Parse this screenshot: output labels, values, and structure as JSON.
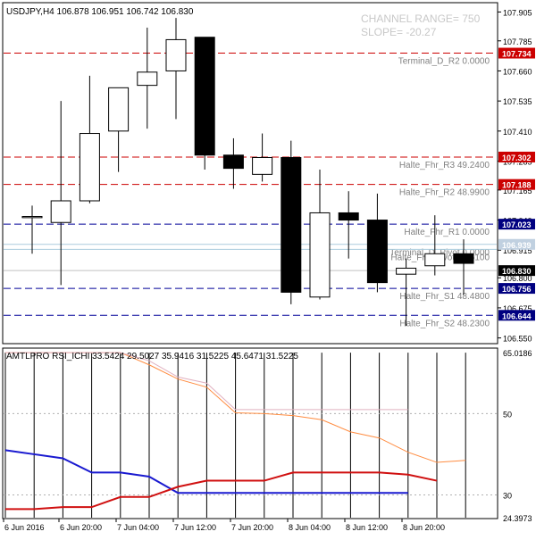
{
  "symbol_header": "USDJPY,H4  106.878 106.951 106.742 106.830",
  "overlay": {
    "channel_range": "CHANNEL RANGE= 750",
    "slope": "SLOPE= -20.27"
  },
  "indicator_header": "AMTLPRO RSI_ICHI 33.5424 29.5027 35.9416 31.5225 45.6471 31.5225",
  "colors": {
    "background": "#ffffff",
    "grid_border": "#000000",
    "red_dash": "#cc0000",
    "blue_dash": "#000099",
    "pivot_line": "#aaccdd",
    "current_price_line": "#c0c0c0",
    "label_gray": "#808080",
    "tag_red_bg": "#cc0000",
    "tag_blue_bg": "#000080",
    "tag_light_bg": "#c0d0e0",
    "tag_black_bg": "#000000",
    "rsi_orange": "#ff8c40",
    "rsi_pink": "#e0b0c0",
    "rsi_blue": "#1a1ad0",
    "rsi_red": "#d01010",
    "rsi_dots": "#b0b0b0"
  },
  "chart_data": {
    "type": "candlestick",
    "price_axis_ticks": [
      "107.905",
      "107.785",
      "107.660",
      "107.535",
      "107.410",
      "107.285",
      "107.165",
      "107.040",
      "106.915",
      "106.800",
      "106.675",
      "106.550"
    ],
    "price_ylim": [
      106.53,
      107.94
    ],
    "time_labels": [
      "6 Jun 2016",
      "6 Jun 20:00",
      "7 Jun 04:00",
      "7 Jun 12:00",
      "7 Jun 20:00",
      "8 Jun 04:00",
      "8 Jun 12:00",
      "8 Jun 20:00"
    ],
    "candles": [
      {
        "o": 107.05,
        "h": 107.1,
        "l": 106.9,
        "c": 107.055
      },
      {
        "o": 107.03,
        "h": 107.535,
        "l": 106.77,
        "c": 107.12
      },
      {
        "o": 107.12,
        "h": 107.64,
        "l": 107.11,
        "c": 107.4
      },
      {
        "o": 107.41,
        "h": 107.58,
        "l": 107.24,
        "c": 107.59
      },
      {
        "o": 107.6,
        "h": 107.84,
        "l": 107.42,
        "c": 107.655
      },
      {
        "o": 107.66,
        "h": 107.88,
        "l": 107.46,
        "c": 107.79
      },
      {
        "o": 107.8,
        "h": 107.8,
        "l": 107.25,
        "c": 107.31
      },
      {
        "o": 107.31,
        "h": 107.38,
        "l": 107.17,
        "c": 107.255
      },
      {
        "o": 107.23,
        "h": 107.4,
        "l": 107.2,
        "c": 107.3
      },
      {
        "o": 107.3,
        "h": 107.37,
        "l": 106.69,
        "c": 106.74
      },
      {
        "o": 106.72,
        "h": 107.25,
        "l": 106.71,
        "c": 107.07
      },
      {
        "o": 107.07,
        "h": 107.16,
        "l": 106.88,
        "c": 107.04
      },
      {
        "o": 107.04,
        "h": 107.15,
        "l": 106.74,
        "c": 106.78
      },
      {
        "o": 106.815,
        "h": 106.88,
        "l": 106.6,
        "c": 106.84
      },
      {
        "o": 106.85,
        "h": 107.06,
        "l": 106.81,
        "c": 106.9
      },
      {
        "o": 106.9,
        "h": 106.96,
        "l": 106.73,
        "c": 106.86
      }
    ],
    "levels": [
      {
        "price": 107.734,
        "tag": "107.734",
        "label": "Terminal_D_R2 0.0000",
        "color": "red",
        "label_color": "gray",
        "tag_style": "red"
      },
      {
        "price": 107.302,
        "tag": "107.302",
        "label": "Halte_Fhr_R3 49.2400",
        "color": "red",
        "label_color": "gray",
        "tag_style": "red"
      },
      {
        "price": 107.188,
        "tag": "107.188",
        "label": "Halte_Fhr_R2 48.9900",
        "color": "red",
        "label_color": "gray",
        "tag_style": "red"
      },
      {
        "price": 107.023,
        "tag": "107.023",
        "label": "Halte_Fhr_R1 0.0000",
        "color": "blue",
        "label_color": "gray",
        "tag_style": "blue"
      },
      {
        "price": 106.939,
        "tag": "106.939",
        "label": "Terminal_D_Pivot 0.0000",
        "color": "light",
        "label_color": "gray",
        "tag_style": "light"
      },
      {
        "price": 106.918,
        "tag": "",
        "label": "Halte_Fhr_Pivot 48.6100",
        "color": "light",
        "label_color": "gray",
        "tag_style": "none"
      },
      {
        "price": 106.83,
        "tag": "106.830",
        "label": "",
        "color": "current",
        "label_color": "gray",
        "tag_style": "black"
      },
      {
        "price": 106.756,
        "tag": "106.756",
        "label": "Halte_Fhr_S1 48.4800",
        "color": "blue",
        "label_color": "gray",
        "tag_style": "blue"
      },
      {
        "price": 106.644,
        "tag": "106.644",
        "label": "Halte_Fhr_S2 48.2300",
        "color": "blue",
        "label_color": "gray",
        "tag_style": "blue"
      }
    ],
    "rsi_axis_ticks": [
      "65.0186",
      "50",
      "30",
      "24.3973"
    ],
    "rsi_ylim": [
      24.3973,
      65.0186
    ],
    "rsi_levels": [
      50,
      30
    ],
    "rsi_series": [
      {
        "color": "orange",
        "values": [
          65.0,
          65.0,
          65.0,
          65.0,
          65.0,
          62.0,
          58.5,
          56.5,
          50.2,
          50.0,
          49.5,
          48.5,
          45.5,
          44.0,
          40.5,
          38.0,
          38.5
        ]
      },
      {
        "color": "pink",
        "values": [
          65.0,
          65.0,
          65.0,
          65.0,
          65.0,
          63.0,
          59.0,
          57.5,
          51.0,
          51.0,
          51.0,
          51.0,
          51.0,
          51.0,
          51.0,
          null,
          null
        ]
      },
      {
        "color": "blue",
        "values": [
          41.0,
          40.0,
          39.0,
          35.5,
          35.5,
          34.5,
          30.5,
          30.5,
          30.5,
          30.5,
          30.5,
          30.5,
          30.5,
          30.5,
          30.5,
          null,
          null
        ]
      },
      {
        "color": "red",
        "values": [
          26.5,
          26.5,
          27.0,
          27.0,
          29.5,
          29.5,
          32.0,
          33.5,
          33.5,
          33.5,
          35.5,
          35.5,
          35.5,
          35.5,
          35.0,
          33.5,
          null
        ]
      }
    ]
  }
}
